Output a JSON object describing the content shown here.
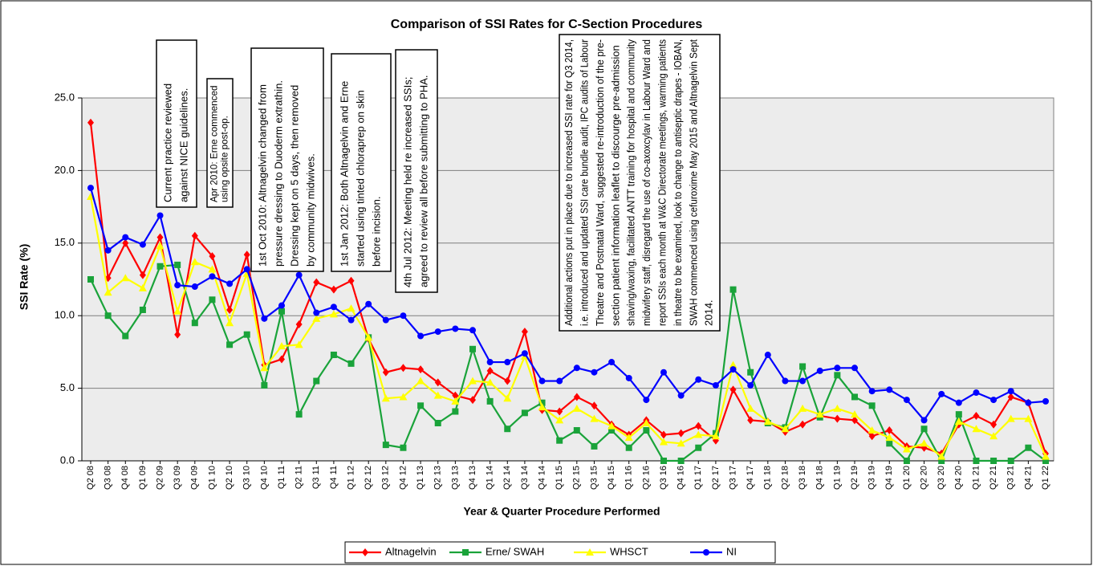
{
  "chart_data": {
    "type": "line",
    "title": "Comparison  of SSI Rates for C-Section Procedures",
    "ylabel": "SSI Rate (%)",
    "xlabel": "Year & Quarter Procedure Performed",
    "categories": [
      "Q2 08",
      "Q3 08",
      "Q4 08",
      "Q1 09",
      "Q2 09",
      "Q3 09",
      "Q4 09",
      "Q1 10",
      "Q2 10",
      "Q3 10",
      "Q4 10",
      "Q1 11",
      "Q2 11",
      "Q3 11",
      "Q4 11",
      "Q1 12",
      "Q2 12",
      "Q3 12",
      "Q4 12",
      "Q1 13",
      "Q2 13",
      "Q3 13",
      "Q4 13",
      "Q1 14",
      "Q2 14",
      "Q3 14",
      "Q4 14",
      "Q1 15",
      "Q2 15",
      "Q3 15",
      "Q4 15",
      "Q1 16",
      "Q2 16",
      "Q3 16",
      "Q4 16",
      "Q1 17",
      "Q2 17",
      "Q3 17",
      "Q4 17",
      "Q1 18",
      "Q2 18",
      "Q3 18",
      "Q4 18",
      "Q1 19",
      "Q2 19",
      "Q3 19",
      "Q4 19",
      "Q1 20",
      "Q2 20",
      "Q3 20",
      "Q4 20",
      "Q1 21",
      "Q2 21",
      "Q3 21",
      "Q4 21",
      "Q1 22"
    ],
    "series": [
      {
        "name": "Altnagelvin",
        "color": "#ff0000",
        "marker": "diamond",
        "values": [
          23.3,
          12.6,
          15.0,
          12.8,
          15.4,
          8.7,
          15.5,
          14.1,
          10.4,
          14.2,
          6.6,
          7.0,
          9.4,
          12.3,
          11.8,
          12.4,
          8.4,
          6.1,
          6.4,
          6.3,
          5.4,
          4.5,
          4.2,
          6.2,
          5.5,
          8.9,
          3.5,
          3.4,
          4.4,
          3.8,
          2.5,
          1.8,
          2.8,
          1.8,
          1.9,
          2.4,
          1.4,
          4.9,
          2.8,
          2.7,
          2.0,
          2.5,
          3.1,
          2.9,
          2.8,
          1.7,
          2.1,
          1.0,
          0.9,
          0.5,
          2.5,
          3.1,
          2.5,
          4.4,
          4.0,
          0.5
        ]
      },
      {
        "name": "Erne/ SWAH",
        "color": "#1aa33a",
        "marker": "square",
        "values": [
          12.5,
          10.0,
          8.6,
          10.4,
          13.4,
          13.5,
          9.5,
          11.1,
          8.0,
          8.7,
          5.2,
          10.3,
          3.2,
          5.5,
          7.3,
          6.7,
          8.5,
          1.1,
          0.9,
          3.8,
          2.6,
          3.4,
          7.7,
          4.1,
          2.2,
          3.3,
          4.0,
          1.4,
          2.1,
          1.0,
          2.1,
          0.9,
          2.1,
          0,
          0,
          0.9,
          1.9,
          11.8,
          6.1,
          2.6,
          2.3,
          6.5,
          3.0,
          5.9,
          4.4,
          3.8,
          1.2,
          0,
          2.2,
          0,
          3.2,
          0,
          0,
          0,
          0.9,
          0
        ]
      },
      {
        "name": "WHSCT",
        "color": "#ffff00",
        "marker": "triangle",
        "values": [
          18.2,
          11.6,
          12.6,
          11.9,
          14.8,
          10.3,
          13.7,
          13.2,
          9.5,
          12.9,
          6.4,
          7.9,
          8.0,
          9.8,
          10.1,
          10.5,
          8.5,
          4.3,
          4.4,
          5.5,
          4.5,
          4.1,
          5.5,
          5.4,
          4.3,
          7.2,
          3.7,
          2.8,
          3.6,
          2.9,
          2.4,
          1.6,
          2.6,
          1.3,
          1.2,
          1.8,
          1.7,
          6.6,
          3.6,
          2.7,
          2.2,
          3.6,
          3.2,
          3.6,
          3.2,
          2.1,
          1.6,
          0.8,
          1.2,
          0.3,
          2.7,
          2.2,
          1.7,
          2.9,
          2.9,
          0.3
        ]
      },
      {
        "name": "NI",
        "color": "#0000ff",
        "marker": "circle",
        "values": [
          18.8,
          14.5,
          15.4,
          14.9,
          16.9,
          12.1,
          12.0,
          12.7,
          12.2,
          13.2,
          9.8,
          10.7,
          12.8,
          10.2,
          10.6,
          9.7,
          10.8,
          9.7,
          10.0,
          8.6,
          8.9,
          9.1,
          9.0,
          6.8,
          6.8,
          7.4,
          5.5,
          5.5,
          6.4,
          6.1,
          6.8,
          5.7,
          4.2,
          6.1,
          4.5,
          5.6,
          5.2,
          6.3,
          5.2,
          7.3,
          5.5,
          5.5,
          6.2,
          6.4,
          6.4,
          4.8,
          4.9,
          4.2,
          2.8,
          4.6,
          4.0,
          4.7,
          4.2,
          4.8,
          4.0,
          4.1
        ]
      }
    ],
    "ylim": [
      0,
      25
    ],
    "yticks": [
      {
        "value": 0,
        "label": "0.0"
      },
      {
        "value": 5,
        "label": "5.0"
      },
      {
        "value": 10,
        "label": "10.0"
      },
      {
        "value": 15,
        "label": "15.0"
      },
      {
        "value": 20,
        "label": "20.0"
      },
      {
        "value": 25,
        "label": "25.0"
      }
    ],
    "grid": true,
    "legend": "bottom",
    "annotations": [
      {
        "lines": [
          "Current practice reviewed",
          "against NICE guidelines."
        ]
      },
      {
        "lines": [
          "Apr 2010: Erne commenced",
          "using opsite post-op."
        ]
      },
      {
        "lines": [
          "1st Oct 2010: Altnagelvin changed from",
          "pressure dressing to Duoderm extrathin.",
          "Dressing kept on 5 days, then removed",
          "by community midwives."
        ]
      },
      {
        "lines": [
          "1st Jan 2012: Both Altnagelvin and Erne",
          "started using tinted chloraprep on skin",
          "before incision."
        ]
      },
      {
        "lines": [
          "4th Jul 2012: Meeting held re increased SSIs;",
          "agreed to review all before submitting to PHA."
        ]
      },
      {
        "lines": [
          "Additional actions put in place due to increased SSI rate for Q3 2014,",
          "i.e. introduced and updated SSI care bundle audit, IPC audits of Labour",
          "Theatre and Postnatal Ward, suggested re-introduction of the pre-",
          "section patient information leaflet to discourge pre-admission",
          "shaving/waxing, facilitated ANTT training for hospital and community",
          "midwifery staff, disregard the use of co-axoxcylav in Labour Ward and",
          "report SSIs each month at W&C Directorate meetings, warming patients",
          "in theatre to be examined, look to change to antiseptic drapes - IOBAN,",
          "SWAH commenced using cefuroxime May 2015 and Altnagelvin Sept",
          "2014."
        ]
      }
    ]
  }
}
